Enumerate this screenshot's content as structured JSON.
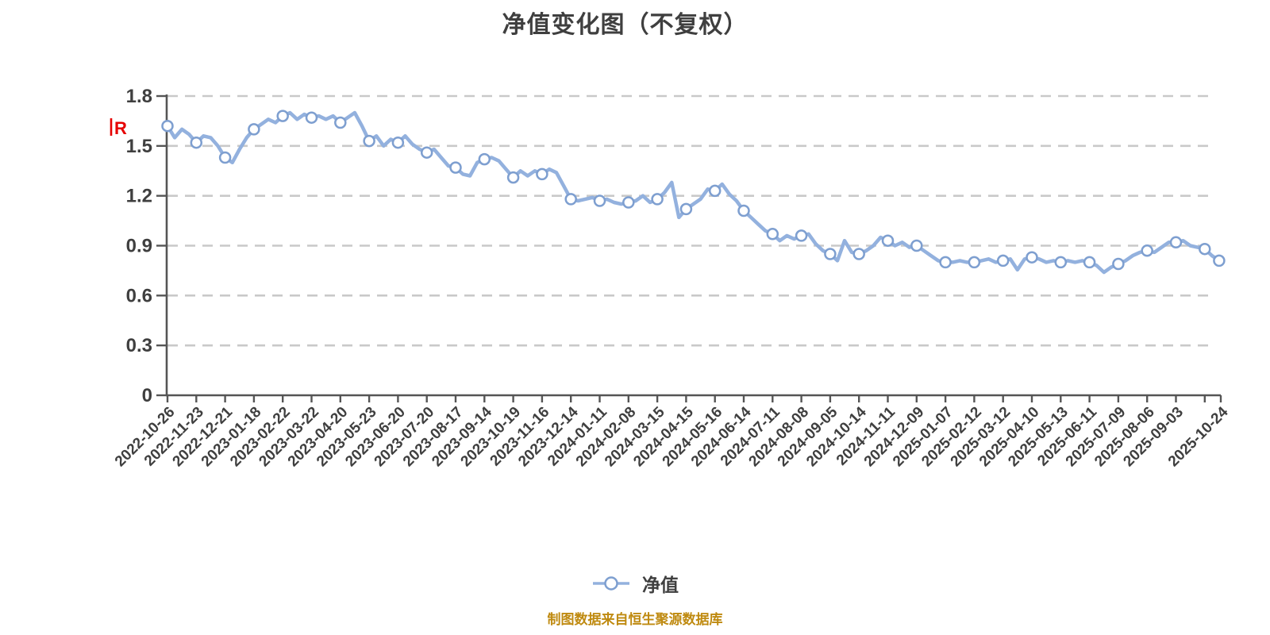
{
  "title": "净值变化图（不复权）",
  "legend": {
    "series_label": "净值"
  },
  "footer": {
    "source_text": "制图数据来自恒生聚源数据库"
  },
  "event_marker": {
    "glyph": "R",
    "meaning": "red-event-flag",
    "color": "#e60000",
    "value_position": 1.62
  },
  "colors": {
    "line": "#93b1de",
    "marker_stroke": "#7e9fd0",
    "marker_fill": "#ffffff",
    "grid": "#c9c9c9",
    "axis": "#555555",
    "text": "#3f3f3f",
    "footer_text": "#bf8a10",
    "event_red": "#e60000"
  },
  "chart_data": {
    "type": "line",
    "title": "净值变化图（不复权）",
    "series_name": "净值",
    "legend_position": "bottom",
    "grid": "horizontal-dashed",
    "ylim": [
      0,
      1.8
    ],
    "y_ticks": [
      "0",
      "0.3",
      "0.6",
      "0.9",
      "1.2",
      "1.5",
      "1.8"
    ],
    "x_tick_labels": [
      "2022-10-26",
      "2022-11-23",
      "2022-12-21",
      "2023-01-18",
      "2023-02-22",
      "2023-03-22",
      "2023-04-20",
      "2023-05-23",
      "2023-06-20",
      "2023-07-20",
      "2023-08-17",
      "2023-09-14",
      "2023-10-19",
      "2023-11-16",
      "2023-12-14",
      "2024-01-11",
      "2024-02-08",
      "2024-03-15",
      "2024-04-15",
      "2024-05-16",
      "2024-06-14",
      "2024-07-11",
      "2024-08-08",
      "2024-09-05",
      "2024-10-14",
      "2024-11-11",
      "2024-12-09",
      "2025-01-07",
      "2025-02-12",
      "2025-03-12",
      "2025-04-10",
      "2025-05-13",
      "2025-06-11",
      "2025-07-09",
      "2025-08-06",
      "2025-09-03",
      "2025-10-24"
    ],
    "values_at_labeled_ticks": [
      1.62,
      1.52,
      1.43,
      1.6,
      1.68,
      1.67,
      1.64,
      1.53,
      1.52,
      1.46,
      1.37,
      1.42,
      1.31,
      1.33,
      1.18,
      1.17,
      1.16,
      1.18,
      1.12,
      1.23,
      1.11,
      0.97,
      0.96,
      0.85,
      0.85,
      0.93,
      0.9,
      0.8,
      0.8,
      0.81,
      0.83,
      0.8,
      0.8,
      0.79,
      0.87,
      0.92,
      0.81
    ],
    "dense_values": [
      1.62,
      1.55,
      1.6,
      1.57,
      1.52,
      1.56,
      1.55,
      1.5,
      1.43,
      1.4,
      1.48,
      1.55,
      1.6,
      1.63,
      1.66,
      1.64,
      1.68,
      1.7,
      1.66,
      1.69,
      1.67,
      1.68,
      1.66,
      1.68,
      1.64,
      1.67,
      1.7,
      1.62,
      1.53,
      1.56,
      1.5,
      1.54,
      1.52,
      1.56,
      1.51,
      1.48,
      1.46,
      1.48,
      1.43,
      1.38,
      1.37,
      1.33,
      1.32,
      1.4,
      1.42,
      1.43,
      1.41,
      1.36,
      1.31,
      1.35,
      1.32,
      1.35,
      1.33,
      1.36,
      1.34,
      1.26,
      1.18,
      1.17,
      1.18,
      1.19,
      1.17,
      1.18,
      1.16,
      1.15,
      1.16,
      1.17,
      1.2,
      1.16,
      1.18,
      1.22,
      1.28,
      1.07,
      1.12,
      1.15,
      1.18,
      1.24,
      1.23,
      1.27,
      1.21,
      1.17,
      1.11,
      1.07,
      1.03,
      0.99,
      0.97,
      0.93,
      0.96,
      0.94,
      0.96,
      0.97,
      0.91,
      0.87,
      0.85,
      0.81,
      0.93,
      0.86,
      0.85,
      0.87,
      0.9,
      0.95,
      0.93,
      0.9,
      0.92,
      0.89,
      0.9,
      0.87,
      0.84,
      0.81,
      0.8,
      0.8,
      0.81,
      0.8,
      0.8,
      0.81,
      0.82,
      0.8,
      0.81,
      0.82,
      0.755,
      0.82,
      0.83,
      0.82,
      0.8,
      0.81,
      0.8,
      0.81,
      0.8,
      0.81,
      0.8,
      0.78,
      0.74,
      0.77,
      0.79,
      0.81,
      0.84,
      0.86,
      0.87,
      0.86,
      0.89,
      0.92,
      0.92,
      0.93,
      0.9,
      0.89,
      0.88,
      0.84,
      0.81
    ],
    "marker_every_nth_dense_point": 4
  }
}
